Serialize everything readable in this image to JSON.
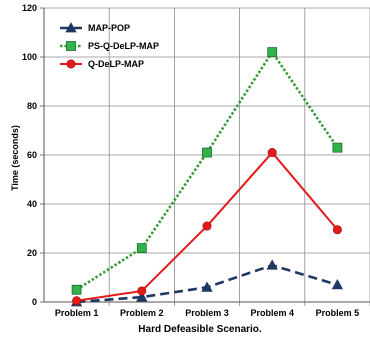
{
  "chart_data": {
    "type": "line",
    "title": "",
    "xlabel": "Hard Defeasible Scenario.",
    "ylabel": "Time (seconds)",
    "categories": [
      "Problem 1",
      "Problem 2",
      "Problem 3",
      "Problem 4",
      "Problem 5"
    ],
    "ylim": [
      0,
      120
    ],
    "yticks": [
      0,
      20,
      40,
      60,
      80,
      100,
      120
    ],
    "grid": true,
    "legend_position": "top-left",
    "series": [
      {
        "name": "MAP-POP",
        "values": [
          0,
          2,
          6,
          15,
          7
        ],
        "color": "#1f3864",
        "line_style": "dashed",
        "marker": "triangle"
      },
      {
        "name": "PS-Q-DeLP-MAP",
        "values": [
          5,
          22,
          61,
          102,
          63
        ],
        "color": "#3a9a3a",
        "marker_fill": "#2fb34a",
        "line_style": "dotted",
        "marker": "square"
      },
      {
        "name": "Q-DeLP-MAP",
        "values": [
          0.5,
          4.5,
          31,
          61,
          29.5
        ],
        "color": "#e31b1b",
        "line_style": "solid",
        "marker": "circle"
      }
    ]
  }
}
